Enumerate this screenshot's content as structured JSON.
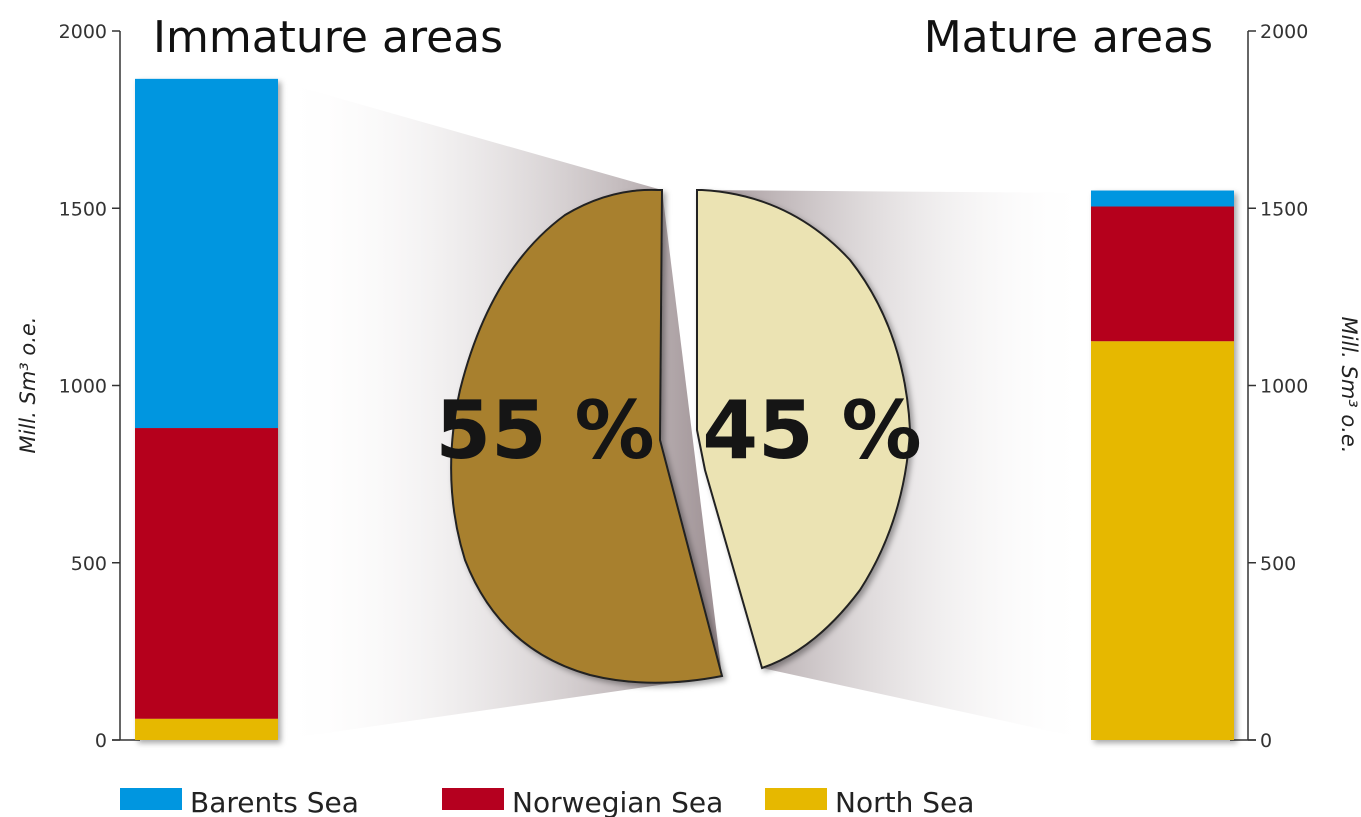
{
  "chart_data": {
    "type": "bar",
    "stacked": true,
    "titles": {
      "left": "Immature areas",
      "right": "Mature areas"
    },
    "ylabel": "Mill. Sm³ o.e.",
    "ylim": [
      0,
      2000
    ],
    "yticks": [
      "0",
      "500",
      "1000",
      "1500",
      "2000"
    ],
    "categories": [
      "Immature areas",
      "Mature areas"
    ],
    "series": [
      {
        "name": "North Sea",
        "color": "#e6b800",
        "values": [
          60,
          1125
        ]
      },
      {
        "name": "Norwegian Sea",
        "color": "#b5001f",
        "values": [
          820,
          380
        ]
      },
      {
        "name": "Barents Sea",
        "color": "#0096e0",
        "values": [
          985,
          45
        ]
      }
    ],
    "pie": {
      "slices": [
        {
          "label": "55 %",
          "value": 55,
          "color": "#a8802e"
        },
        {
          "label": "45 %",
          "value": 45,
          "color": "#ebe3b3"
        }
      ]
    },
    "legend": {
      "position": "bottom",
      "items": [
        {
          "name": "Barents Sea",
          "color": "#0096e0"
        },
        {
          "name": "Norwegian Sea",
          "color": "#b5001f"
        },
        {
          "name": "North Sea",
          "color": "#e6b800"
        }
      ]
    },
    "grid": false
  }
}
